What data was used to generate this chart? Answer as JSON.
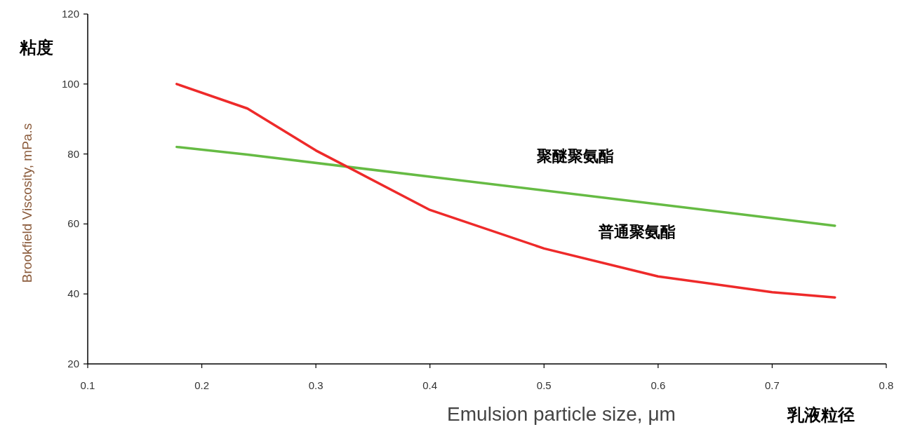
{
  "chart_data": {
    "type": "line",
    "xlabel": "Emulsion particle size,  μm",
    "ylabel": "Brookfield Viscosity, mPa.s",
    "annotations": [
      "粘度",
      "乳液粒径"
    ],
    "series": [
      {
        "name": "聚醚聚氨酯",
        "color": "#66bb44",
        "x": [
          0.178,
          0.24,
          0.4,
          0.755
        ],
        "values": [
          82,
          79.8,
          73.5,
          59.5
        ]
      },
      {
        "name": "普通聚氨酯",
        "color": "#ee2a2a",
        "x": [
          0.178,
          0.24,
          0.3,
          0.4,
          0.5,
          0.6,
          0.7,
          0.755
        ],
        "values": [
          100,
          93,
          81,
          64,
          53,
          45,
          40.5,
          39
        ]
      }
    ],
    "xlim": [
      0.1,
      0.8
    ],
    "xticks": [
      0.1,
      0.2,
      0.3,
      0.4,
      0.5,
      0.6,
      0.7,
      0.8
    ],
    "ylim": [
      20,
      120
    ],
    "yticks": [
      20,
      40,
      60,
      80,
      100,
      120
    ],
    "grid": false,
    "marker": "none",
    "line_style": "solid"
  }
}
